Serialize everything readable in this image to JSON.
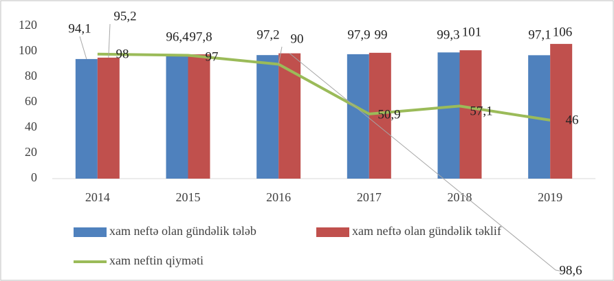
{
  "chart_data": {
    "type": "bar-line",
    "categories": [
      "2014",
      "2015",
      "2016",
      "2017",
      "2018",
      "2019"
    ],
    "series": [
      {
        "name": "xam neftə olan gündəlik tələb",
        "type": "bar",
        "color": "#4f81bd",
        "values": [
          94.1,
          96.4,
          97.2,
          97.9,
          99.3,
          97.1
        ],
        "value_labels": [
          "94,1",
          "96,4",
          "97,2",
          "97,9",
          "99,3",
          "97,1"
        ]
      },
      {
        "name": "xam neftə olan gündəlik təklif",
        "type": "bar",
        "color": "#c0504d",
        "values": [
          95.2,
          97.8,
          98.6,
          99,
          101,
          106
        ],
        "value_labels": [
          "95,2",
          "97,8",
          "98,6",
          "99",
          "101",
          "106"
        ]
      },
      {
        "name": "xam neftin qiyməti",
        "type": "line",
        "color": "#9bbb59",
        "values": [
          98,
          97,
          90,
          50.9,
          57.1,
          46
        ],
        "value_labels": [
          "98",
          "97",
          "90",
          "50,9",
          "57,1",
          "46"
        ]
      }
    ],
    "ylim": [
      0,
      120
    ],
    "yticks": [
      0,
      20,
      40,
      60,
      80,
      100,
      120
    ],
    "grid": false,
    "legend": "bottom"
  }
}
